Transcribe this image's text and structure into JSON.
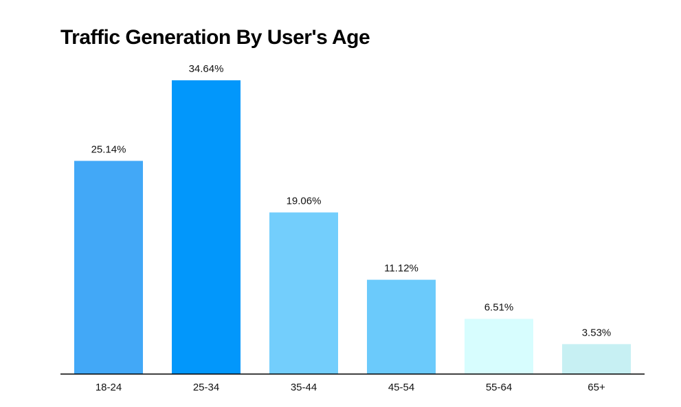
{
  "chart_data": {
    "type": "bar",
    "title": "Traffic Generation By User's Age",
    "xlabel": "",
    "ylabel": "",
    "categories": [
      "18-24",
      "25-34",
      "35-44",
      "45-54",
      "55-64",
      "65+"
    ],
    "values": [
      25.14,
      34.64,
      19.06,
      11.12,
      6.51,
      3.53
    ],
    "value_labels": [
      "25.14%",
      "34.64%",
      "19.06%",
      "11.12%",
      "6.51%",
      "3.53%"
    ],
    "colors": [
      "#42a8f7",
      "#0297fb",
      "#73cefc",
      "#6bcafb",
      "#d7fdfe",
      "#c7f0f3"
    ],
    "ylim": [
      0,
      34.64
    ],
    "grid": false,
    "legend": "none"
  }
}
